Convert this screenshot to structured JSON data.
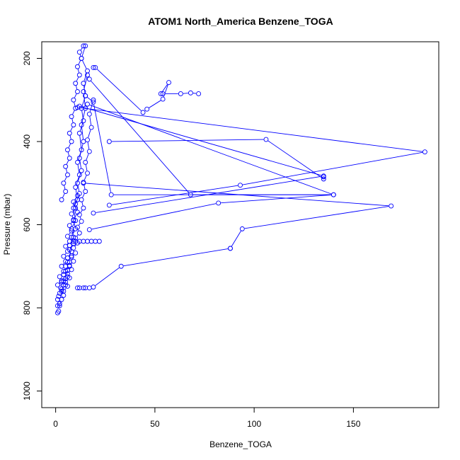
{
  "chart_data": {
    "type": "line",
    "title": "ATOM1 North_America Benzene_TOGA",
    "xlabel": "Benzene_TOGA",
    "ylabel": "Pressure (mbar)",
    "xlim": [
      -7,
      193
    ],
    "ylim": [
      1040,
      160
    ],
    "y_reversed": true,
    "x_ticks": [
      0,
      50,
      100,
      150
    ],
    "y_ticks": [
      200,
      400,
      600,
      800,
      1000
    ],
    "grid": false,
    "series_color": "#0000ff",
    "series": [
      {
        "x": [
          1,
          1.5,
          1,
          2,
          1,
          1.5,
          2,
          3,
          2.5,
          4,
          3,
          5,
          4,
          6,
          5,
          7,
          6,
          8,
          7,
          9,
          8,
          10,
          9,
          11,
          10,
          12,
          11,
          13,
          12,
          14,
          13,
          15,
          14,
          16,
          13,
          15
        ],
        "y": [
          812,
          808,
          795,
          790,
          780,
          772,
          765,
          760,
          752,
          745,
          738,
          730,
          720,
          710,
          700,
          690,
          680,
          665,
          650,
          630,
          610,
          590,
          560,
          540,
          510,
          480,
          450,
          420,
          380,
          350,
          320,
          290,
          260,
          230,
          200,
          170
        ]
      },
      {
        "x": [
          2,
          3,
          4,
          3,
          5,
          4,
          6,
          5,
          7,
          6,
          8,
          7,
          9,
          8,
          10,
          9,
          11,
          10,
          12,
          11,
          13,
          12,
          14,
          13,
          15,
          14,
          16
        ],
        "y": [
          795,
          780,
          770,
          755,
          745,
          735,
          725,
          712,
          700,
          690,
          675,
          660,
          645,
          630,
          610,
          590,
          570,
          550,
          525,
          500,
          470,
          440,
          400,
          360,
          320,
          280,
          240
        ]
      },
      {
        "x": [
          4,
          6,
          5,
          7,
          6,
          8,
          7,
          9,
          8,
          10,
          9,
          11,
          10,
          12,
          11,
          13,
          12,
          14,
          13,
          15,
          14,
          16,
          15,
          17,
          16,
          18,
          17,
          19
        ],
        "y": [
          760,
          748,
          738,
          728,
          718,
          708,
          698,
          688,
          678,
          668,
          656,
          644,
          632,
          620,
          606,
          592,
          576,
          560,
          540,
          520,
          498,
          476,
          450,
          424,
          396,
          366,
          334,
          300
        ]
      },
      {
        "x": [
          1,
          3,
          2,
          4,
          3,
          5,
          4,
          6,
          5,
          7,
          6,
          8,
          7,
          9,
          8,
          10,
          9,
          11
        ],
        "y": [
          745,
          735,
          725,
          712,
          700,
          688,
          676,
          664,
          652,
          640,
          628,
          615,
          602,
          588,
          574,
          560,
          545,
          530
        ]
      },
      {
        "x": [
          3,
          5,
          4,
          6,
          5,
          7,
          6,
          8,
          7,
          9,
          8,
          10,
          9,
          11,
          10,
          12,
          11,
          13,
          12,
          14
        ],
        "y": [
          540,
          520,
          500,
          480,
          460,
          440,
          420,
          400,
          380,
          360,
          340,
          320,
          300,
          280,
          260,
          240,
          220,
          200,
          185,
          170
        ]
      },
      {
        "x": [
          9,
          10,
          12,
          14,
          16,
          18,
          20,
          22
        ],
        "y": [
          640,
          640,
          640,
          640,
          640,
          640,
          640,
          640
        ]
      },
      {
        "x": [
          11,
          12,
          14,
          15,
          17
        ],
        "y": [
          752,
          752,
          752,
          752,
          752
        ]
      },
      {
        "x": [
          19,
          20,
          44
        ],
        "y": [
          222,
          222,
          330
        ]
      },
      {
        "x": [
          15,
          19,
          28,
          140,
          68,
          17
        ],
        "y": [
          290,
          305,
          528,
          528,
          528,
          250
        ]
      },
      {
        "x": [
          46,
          54,
          57,
          53
        ],
        "y": [
          322,
          298,
          258,
          285
        ]
      },
      {
        "x": [
          54,
          63,
          68,
          72
        ],
        "y": [
          285,
          285,
          283,
          285
        ]
      },
      {
        "x": [
          11,
          186,
          93,
          27
        ],
        "y": [
          318,
          425,
          505,
          553
        ]
      },
      {
        "x": [
          27,
          106,
          135,
          135
        ],
        "y": [
          400,
          395,
          490,
          485
        ]
      },
      {
        "x": [
          12,
          135,
          19
        ],
        "y": [
          315,
          483,
          572
        ]
      },
      {
        "x": [
          14,
          169,
          94,
          88
        ],
        "y": [
          500,
          555,
          610,
          657
        ]
      },
      {
        "x": [
          17,
          82,
          140,
          16
        ],
        "y": [
          612,
          548,
          528,
          310
        ]
      },
      {
        "x": [
          88,
          33,
          19
        ],
        "y": [
          657,
          700,
          750
        ]
      }
    ]
  }
}
